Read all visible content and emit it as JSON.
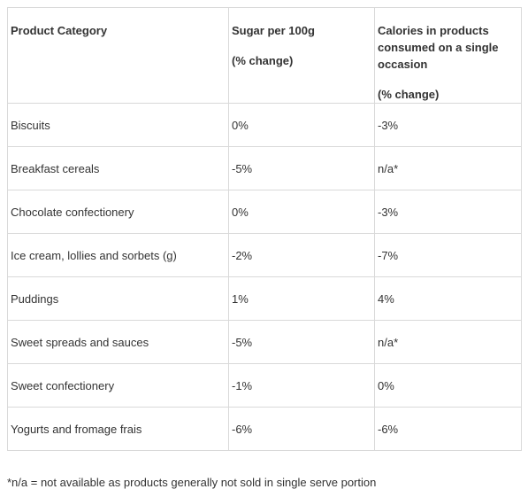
{
  "table": {
    "headers": {
      "category": "Product Category",
      "sugar_line1": "Sugar per 100g",
      "sugar_line2": "(% change)",
      "calories_line1": "Calories in products consumed on a single occasion",
      "calories_line2": "(% change)"
    },
    "rows": [
      {
        "category": "Biscuits",
        "sugar": "0%",
        "calories": "-3%"
      },
      {
        "category": "Breakfast cereals",
        "sugar": "-5%",
        "calories": "n/a*"
      },
      {
        "category": "Chocolate confectionery",
        "sugar": "0%",
        "calories": "-3%"
      },
      {
        "category": "Ice cream, lollies and sorbets (g)",
        "sugar": "-2%",
        "calories": "-7%"
      },
      {
        "category": "Puddings",
        "sugar": "1%",
        "calories": "4%"
      },
      {
        "category": "Sweet spreads and sauces",
        "sugar": "-5%",
        "calories": "n/a*"
      },
      {
        "category": "Sweet confectionery",
        "sugar": "-1%",
        "calories": "0%"
      },
      {
        "category": "Yogurts and fromage frais",
        "sugar": "-6%",
        "calories": "-6%"
      }
    ]
  },
  "footnote": "*n/a = not available as products generally not sold in single serve portion"
}
